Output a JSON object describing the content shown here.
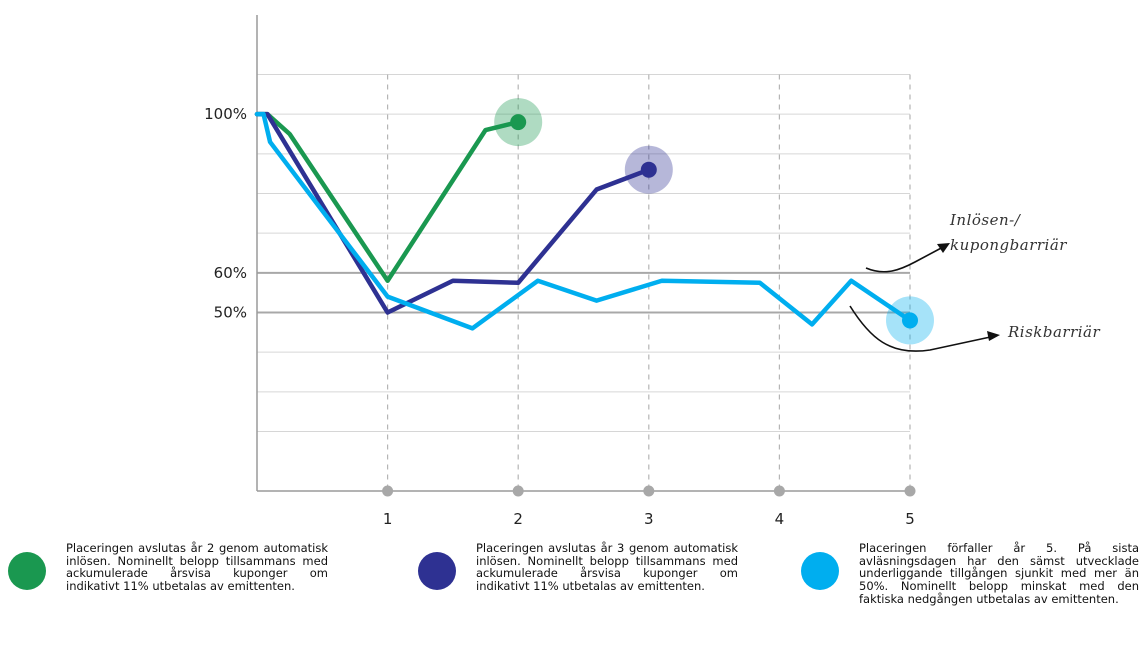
{
  "chart_data": {
    "type": "line",
    "xlabel": "",
    "ylabel": "",
    "x_ticks": [
      "1",
      "2",
      "3",
      "4",
      "5"
    ],
    "y_ticks": [
      {
        "value": 100,
        "label": "100%"
      },
      {
        "value": 60,
        "label": "60%"
      },
      {
        "value": 50,
        "label": "50%"
      }
    ],
    "xlim": [
      0,
      5.05
    ],
    "ylim": [
      5,
      125
    ],
    "barriers": [
      {
        "value": 60,
        "label": "Inlösen-/ kupongbarriär"
      },
      {
        "value": 50,
        "label": "Riskbarriär"
      }
    ],
    "series": [
      {
        "color": "#1a9850",
        "end_x": 2,
        "x": [
          0.0,
          0.08,
          0.25,
          1.0,
          1.75,
          2.0
        ],
        "y": [
          100,
          100,
          95,
          58,
          96,
          98
        ]
      },
      {
        "color": "#2e3192",
        "end_x": 3,
        "x": [
          0.0,
          0.08,
          1.0,
          1.5,
          2.0,
          2.6,
          3.0
        ],
        "y": [
          100,
          100,
          50,
          58,
          57.5,
          81,
          86
        ]
      },
      {
        "color": "#00aeef",
        "end_x": 5,
        "x": [
          0.0,
          0.05,
          0.1,
          1.0,
          1.65,
          2.15,
          2.6,
          3.1,
          3.85,
          4.25,
          4.55,
          5.0
        ],
        "y": [
          100,
          100,
          93,
          54,
          46,
          58,
          53,
          58,
          57.5,
          47,
          58,
          48
        ]
      }
    ],
    "grid": true,
    "legend_position": "bottom"
  },
  "annotations": {
    "coupon_barrier_line1": "Inlösen-/",
    "coupon_barrier_line2": "kupongbarriär",
    "risk_barrier": "Riskbarriär"
  },
  "legend": [
    {
      "color": "#1a9850",
      "text": "Placeringen avslutas år 2 genom automatisk inlösen. Nominellt belopp tillsammans med ackumulerade årsvisa kuponger om indikativt 11% utbetalas av emittenten."
    },
    {
      "color": "#2e3192",
      "text": "Placeringen avslutas år 3 genom automatisk inlösen. Nominellt belopp tillsammans med ackumulerade årsvisa kuponger om indikativt 11% utbetalas av emittenten."
    },
    {
      "color": "#00aeef",
      "text": "Placeringen förfaller år 5. På sista avläsningsdagen har den sämst utvecklade underliggande tillgången sjunkit med mer än 50%. Nominellt belopp minskat med den faktiska nedgången utbetalas av emittenten."
    }
  ]
}
